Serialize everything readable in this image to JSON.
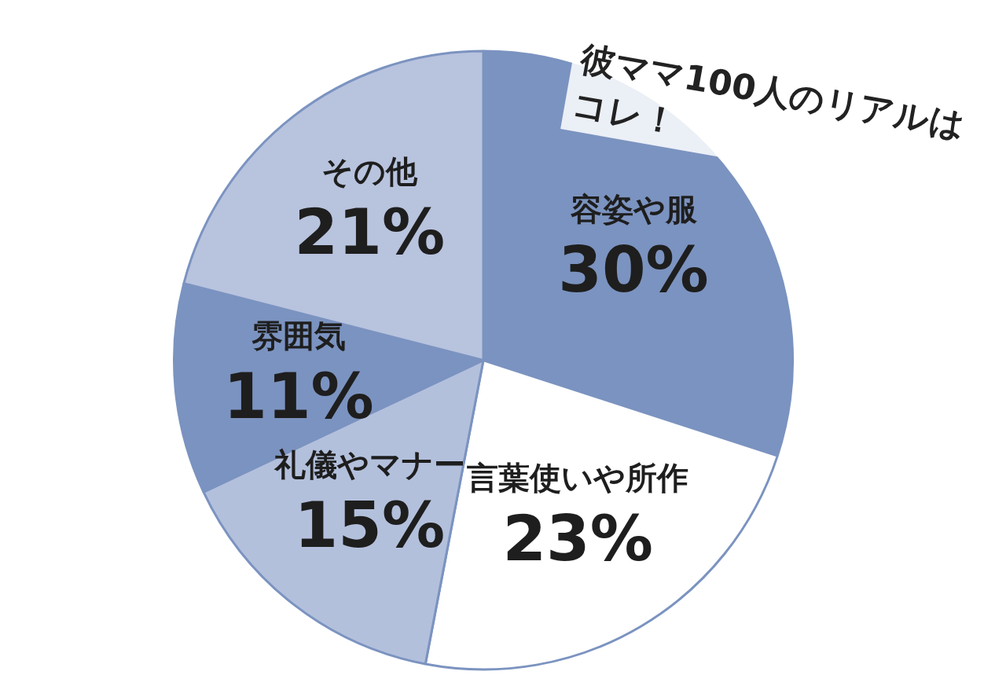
{
  "chart_data": {
    "type": "pie",
    "title": "彼ママ100人のリアルはコレ！",
    "categories": [
      "容姿や服",
      "言葉使いや所作",
      "礼儀やマナー",
      "雰囲気",
      "その他"
    ],
    "values": [
      30,
      23,
      15,
      11,
      21
    ],
    "value_labels": [
      "30%",
      "23%",
      "15%",
      "11%",
      "21%"
    ],
    "colors": [
      "#7b93c0",
      "#ffffff",
      "#b3c0dc",
      "#7b93c0",
      "#b8c3de"
    ],
    "legend": false
  }
}
